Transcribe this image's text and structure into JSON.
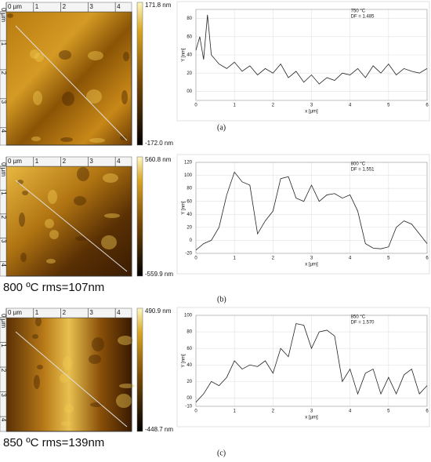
{
  "afm_panels": [
    {
      "scale_max": "171.8 nm",
      "scale_min": "-172.0 nm",
      "x_ticks": [
        "0 µm",
        "1",
        "2",
        "3",
        "4"
      ],
      "y_ticks": [
        "0 µm",
        "1",
        "2",
        "3",
        "4"
      ]
    },
    {
      "scale_max": "560.8 nm",
      "scale_min": "-559.9 nm",
      "x_ticks": [
        "0 µm",
        "1",
        "2",
        "3",
        "4"
      ],
      "y_ticks": [
        "0 µm",
        "1",
        "2",
        "3",
        "4"
      ],
      "caption": "800 ºC  rms=107nm"
    },
    {
      "scale_max": "490.9 nm",
      "scale_min": "-448.7 nm",
      "x_ticks": [
        "0 µm",
        "1",
        "2",
        "3",
        "4"
      ],
      "y_ticks": [
        "0 µm",
        "1",
        "2",
        "3",
        "4"
      ],
      "caption": "850 ºC  rms=139nm"
    }
  ],
  "panel_labels": [
    "(a)",
    "(b)",
    "(c)"
  ],
  "chart_data": [
    {
      "type": "line",
      "annotation": [
        "750 °C",
        "DF = 1.485"
      ],
      "x_label": "x [µm]",
      "y_label": "Y [nm]",
      "x": [
        0,
        0.1,
        0.2,
        0.3,
        0.4,
        0.6,
        0.8,
        1.0,
        1.2,
        1.4,
        1.6,
        1.8,
        2.0,
        2.2,
        2.4,
        2.6,
        2.8,
        3.0,
        3.2,
        3.4,
        3.6,
        3.8,
        4.0,
        4.2,
        4.4,
        4.6,
        4.8,
        5.0,
        5.2,
        5.4,
        5.6,
        5.8,
        6.0
      ],
      "series": [
        {
          "color": "#222222",
          "values": [
            45,
            60,
            35,
            84,
            40,
            30,
            25,
            32,
            22,
            28,
            18,
            25,
            20,
            30,
            15,
            22,
            10,
            18,
            8,
            15,
            12,
            20,
            18,
            25,
            15,
            28,
            20,
            30,
            18,
            25,
            22,
            20,
            25
          ]
        }
      ],
      "xlim": [
        0,
        6
      ],
      "xticks": [
        0,
        1,
        2,
        3,
        4,
        5,
        6
      ],
      "ylim": [
        -10,
        90
      ],
      "yticks": [
        {
          "value": 0,
          "label": "00"
        },
        20,
        40,
        60,
        80
      ],
      "grid": true
    },
    {
      "type": "line",
      "annotation": [
        "800 °C",
        "DF = 1.551"
      ],
      "x_label": "x [µm]",
      "y_label": "Y [nm]",
      "x": [
        0,
        0.2,
        0.4,
        0.6,
        0.8,
        1.0,
        1.2,
        1.4,
        1.6,
        1.8,
        2.0,
        2.2,
        2.4,
        2.6,
        2.8,
        3.0,
        3.2,
        3.4,
        3.6,
        3.8,
        4.0,
        4.2,
        4.4,
        4.6,
        4.8,
        5.0,
        5.2,
        5.4,
        5.6,
        5.8,
        6.0
      ],
      "series": [
        {
          "color": "#222222",
          "values": [
            -15,
            -5,
            0,
            20,
            70,
            105,
            90,
            85,
            10,
            30,
            45,
            95,
            98,
            65,
            60,
            85,
            60,
            70,
            72,
            65,
            70,
            45,
            -5,
            -12,
            -13,
            -10,
            20,
            30,
            25,
            10,
            -5
          ]
        }
      ],
      "xlim": [
        0,
        6
      ],
      "xticks": [
        0,
        1,
        2,
        3,
        4,
        5,
        6
      ],
      "ylim": [
        -20,
        120
      ],
      "yticks": [
        -20,
        0,
        20,
        40,
        60,
        80,
        100,
        120
      ],
      "grid": true
    },
    {
      "type": "line",
      "annotation": [
        "850 °C",
        "DF = 1.570"
      ],
      "x_label": "x [µm]",
      "y_label": "Y [nm]",
      "x": [
        0,
        0.2,
        0.4,
        0.6,
        0.8,
        1.0,
        1.2,
        1.4,
        1.6,
        1.8,
        2.0,
        2.2,
        2.4,
        2.6,
        2.8,
        3.0,
        3.2,
        3.4,
        3.6,
        3.8,
        4.0,
        4.2,
        4.4,
        4.6,
        4.8,
        5.0,
        5.2,
        5.4,
        5.6,
        5.8,
        6.0
      ],
      "series": [
        {
          "color": "#222222",
          "values": [
            -5,
            5,
            20,
            15,
            25,
            45,
            35,
            40,
            38,
            45,
            30,
            60,
            50,
            90,
            88,
            60,
            80,
            82,
            75,
            20,
            35,
            5,
            30,
            35,
            5,
            25,
            5,
            28,
            35,
            5,
            15
          ]
        }
      ],
      "xlim": [
        0,
        6
      ],
      "xticks": [
        0,
        1,
        2,
        3,
        4,
        5,
        6
      ],
      "ylim": [
        -10,
        100
      ],
      "yticks": [
        -10,
        {
          "value": 0,
          "label": "00"
        },
        20,
        40,
        60,
        80,
        100
      ],
      "grid": true
    }
  ]
}
